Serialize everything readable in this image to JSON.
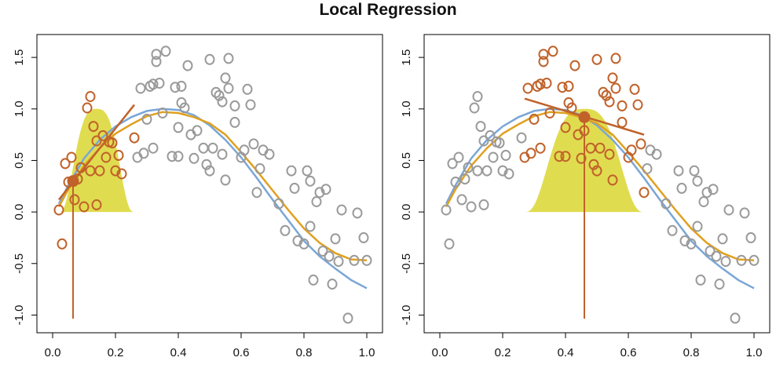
{
  "title": "Local Regression",
  "colors": {
    "outside": "#9a9a9a",
    "inside": "#c0622a",
    "true_curve": "#7aa6d6",
    "fit_curve": "#e0a020",
    "kernel": "#e0dc50",
    "local_line": "#c0622a",
    "target_point": "#c0622a"
  },
  "chart_data": [
    {
      "type": "scatter",
      "xlim": [
        0,
        1
      ],
      "ylim": [
        -1.05,
        1.6
      ],
      "xticks": [
        "0.0",
        "0.2",
        "0.4",
        "0.6",
        "0.8",
        "1.0"
      ],
      "yticks": [
        "-1.0",
        "-0.5",
        "0.0",
        "0.5",
        "1.0",
        "1.5"
      ],
      "grid": false,
      "legend": "none",
      "target": {
        "x": 0.065,
        "y": 0.3
      },
      "window": [
        0.02,
        0.26
      ],
      "kernel_peak": 1.0,
      "local_line": {
        "x": [
          0.02,
          0.26
        ],
        "y": [
          0.12,
          1.04
        ]
      },
      "true_curve": {
        "x": [
          0.02,
          0.05,
          0.1,
          0.15,
          0.2,
          0.25,
          0.3,
          0.35,
          0.4,
          0.45,
          0.5,
          0.55,
          0.6,
          0.65,
          0.7,
          0.75,
          0.8,
          0.85,
          0.9,
          0.95,
          1.0
        ],
        "y": [
          0.08,
          0.26,
          0.52,
          0.7,
          0.83,
          0.92,
          0.98,
          1.0,
          0.99,
          0.94,
          0.84,
          0.7,
          0.53,
          0.33,
          0.12,
          -0.08,
          -0.28,
          -0.43,
          -0.55,
          -0.66,
          -0.74
        ]
      },
      "fit_curve": {
        "x": [
          0.02,
          0.05,
          0.1,
          0.15,
          0.2,
          0.25,
          0.3,
          0.35,
          0.4,
          0.45,
          0.5,
          0.55,
          0.6,
          0.65,
          0.7,
          0.75,
          0.8,
          0.85,
          0.9,
          0.95,
          1.0
        ],
        "y": [
          0.05,
          0.22,
          0.45,
          0.62,
          0.76,
          0.85,
          0.93,
          0.97,
          0.96,
          0.92,
          0.86,
          0.75,
          0.58,
          0.4,
          0.21,
          0.02,
          -0.16,
          -0.3,
          -0.4,
          -0.46,
          -0.47
        ]
      },
      "points_inside": [
        [
          0.02,
          0.02
        ],
        [
          0.03,
          -0.31
        ],
        [
          0.04,
          0.47
        ],
        [
          0.05,
          0.29
        ],
        [
          0.06,
          0.53
        ],
        [
          0.07,
          0.12
        ],
        [
          0.08,
          0.32
        ],
        [
          0.09,
          0.43
        ],
        [
          0.1,
          0.05
        ],
        [
          0.11,
          1.01
        ],
        [
          0.12,
          1.12
        ],
        [
          0.12,
          0.4
        ],
        [
          0.13,
          0.83
        ],
        [
          0.14,
          0.07
        ],
        [
          0.14,
          0.69
        ],
        [
          0.15,
          0.4
        ],
        [
          0.16,
          0.74
        ],
        [
          0.17,
          0.53
        ],
        [
          0.18,
          0.68
        ],
        [
          0.19,
          0.67
        ],
        [
          0.2,
          0.4
        ],
        [
          0.21,
          0.55
        ],
        [
          0.22,
          0.37
        ],
        [
          0.26,
          0.72
        ]
      ],
      "points_outside": [
        [
          0.27,
          0.53
        ],
        [
          0.28,
          1.2
        ],
        [
          0.29,
          0.57
        ],
        [
          0.3,
          0.9
        ],
        [
          0.31,
          1.22
        ],
        [
          0.32,
          1.24
        ],
        [
          0.32,
          0.62
        ],
        [
          0.33,
          1.53
        ],
        [
          0.33,
          1.46
        ],
        [
          0.34,
          1.25
        ],
        [
          0.35,
          0.96
        ],
        [
          0.36,
          1.56
        ],
        [
          0.38,
          0.54
        ],
        [
          0.39,
          1.21
        ],
        [
          0.4,
          0.54
        ],
        [
          0.4,
          0.82
        ],
        [
          0.41,
          1.22
        ],
        [
          0.41,
          1.06
        ],
        [
          0.42,
          1.01
        ],
        [
          0.43,
          1.42
        ],
        [
          0.44,
          0.75
        ],
        [
          0.45,
          0.52
        ],
        [
          0.46,
          0.79
        ],
        [
          0.48,
          0.62
        ],
        [
          0.49,
          0.46
        ],
        [
          0.5,
          1.48
        ],
        [
          0.5,
          0.4
        ],
        [
          0.51,
          0.62
        ],
        [
          0.52,
          1.16
        ],
        [
          0.53,
          1.13
        ],
        [
          0.54,
          0.56
        ],
        [
          0.54,
          1.07
        ],
        [
          0.55,
          0.31
        ],
        [
          0.55,
          1.3
        ],
        [
          0.56,
          1.49
        ],
        [
          0.56,
          1.2
        ],
        [
          0.58,
          0.87
        ],
        [
          0.58,
          1.03
        ],
        [
          0.6,
          0.53
        ],
        [
          0.61,
          0.6
        ],
        [
          0.62,
          1.19
        ],
        [
          0.63,
          1.04
        ],
        [
          0.64,
          0.66
        ],
        [
          0.65,
          0.19
        ],
        [
          0.66,
          0.42
        ],
        [
          0.67,
          0.6
        ],
        [
          0.69,
          0.56
        ],
        [
          0.72,
          0.08
        ],
        [
          0.74,
          -0.18
        ],
        [
          0.76,
          0.4
        ],
        [
          0.77,
          0.23
        ],
        [
          0.78,
          -0.28
        ],
        [
          0.8,
          -0.31
        ],
        [
          0.81,
          0.4
        ],
        [
          0.82,
          -0.14
        ],
        [
          0.82,
          0.3
        ],
        [
          0.83,
          -0.66
        ],
        [
          0.84,
          0.1
        ],
        [
          0.85,
          0.19
        ],
        [
          0.86,
          -0.38
        ],
        [
          0.87,
          0.22
        ],
        [
          0.88,
          -0.43
        ],
        [
          0.89,
          -0.7
        ],
        [
          0.9,
          -0.26
        ],
        [
          0.91,
          -0.48
        ],
        [
          0.92,
          0.02
        ],
        [
          0.94,
          -1.03
        ],
        [
          0.96,
          -0.47
        ],
        [
          0.97,
          -0.01
        ],
        [
          0.99,
          -0.25
        ],
        [
          1.0,
          -0.47
        ]
      ]
    },
    {
      "type": "scatter",
      "xlim": [
        0,
        1
      ],
      "ylim": [
        -1.05,
        1.6
      ],
      "xticks": [
        "0.0",
        "0.2",
        "0.4",
        "0.6",
        "0.8",
        "1.0"
      ],
      "yticks": [
        "-1.0",
        "-0.5",
        "0.0",
        "0.5",
        "1.0",
        "1.5"
      ],
      "grid": false,
      "legend": "none",
      "target": {
        "x": 0.46,
        "y": 0.92
      },
      "window": [
        0.27,
        0.65
      ],
      "kernel_peak": 1.0,
      "local_line": {
        "x": [
          0.27,
          0.65
        ],
        "y": [
          1.1,
          0.75
        ]
      },
      "true_curve": {
        "x": [
          0.02,
          0.05,
          0.1,
          0.15,
          0.2,
          0.25,
          0.3,
          0.35,
          0.4,
          0.45,
          0.5,
          0.55,
          0.6,
          0.65,
          0.7,
          0.75,
          0.8,
          0.85,
          0.9,
          0.95,
          1.0
        ],
        "y": [
          0.08,
          0.26,
          0.52,
          0.7,
          0.83,
          0.92,
          0.98,
          1.0,
          0.99,
          0.94,
          0.84,
          0.7,
          0.53,
          0.33,
          0.12,
          -0.08,
          -0.28,
          -0.43,
          -0.55,
          -0.66,
          -0.74
        ]
      },
      "fit_curve": {
        "x": [
          0.02,
          0.05,
          0.1,
          0.15,
          0.2,
          0.25,
          0.3,
          0.35,
          0.4,
          0.45,
          0.5,
          0.55,
          0.6,
          0.65,
          0.7,
          0.75,
          0.8,
          0.85,
          0.9,
          0.95,
          1.0
        ],
        "y": [
          0.05,
          0.22,
          0.45,
          0.62,
          0.76,
          0.85,
          0.93,
          0.97,
          0.96,
          0.92,
          0.86,
          0.75,
          0.58,
          0.4,
          0.21,
          0.02,
          -0.16,
          -0.3,
          -0.4,
          -0.46,
          -0.47
        ]
      },
      "points_inside": [
        [
          0.27,
          0.53
        ],
        [
          0.28,
          1.2
        ],
        [
          0.29,
          0.57
        ],
        [
          0.3,
          0.9
        ],
        [
          0.31,
          1.22
        ],
        [
          0.32,
          1.24
        ],
        [
          0.32,
          0.62
        ],
        [
          0.33,
          1.53
        ],
        [
          0.33,
          1.46
        ],
        [
          0.34,
          1.25
        ],
        [
          0.35,
          0.96
        ],
        [
          0.36,
          1.56
        ],
        [
          0.38,
          0.54
        ],
        [
          0.39,
          1.21
        ],
        [
          0.4,
          0.54
        ],
        [
          0.4,
          0.82
        ],
        [
          0.41,
          1.22
        ],
        [
          0.41,
          1.06
        ],
        [
          0.42,
          1.01
        ],
        [
          0.43,
          1.42
        ],
        [
          0.44,
          0.75
        ],
        [
          0.45,
          0.52
        ],
        [
          0.46,
          0.79
        ],
        [
          0.48,
          0.62
        ],
        [
          0.49,
          0.46
        ],
        [
          0.5,
          1.48
        ],
        [
          0.5,
          0.4
        ],
        [
          0.51,
          0.62
        ],
        [
          0.52,
          1.16
        ],
        [
          0.53,
          1.13
        ],
        [
          0.54,
          0.56
        ],
        [
          0.54,
          1.07
        ],
        [
          0.55,
          0.31
        ],
        [
          0.55,
          1.3
        ],
        [
          0.56,
          1.49
        ],
        [
          0.56,
          1.2
        ],
        [
          0.58,
          0.87
        ],
        [
          0.58,
          1.03
        ],
        [
          0.6,
          0.53
        ],
        [
          0.61,
          0.6
        ],
        [
          0.62,
          1.19
        ],
        [
          0.63,
          1.04
        ],
        [
          0.64,
          0.66
        ],
        [
          0.65,
          0.19
        ]
      ],
      "points_outside": [
        [
          0.02,
          0.02
        ],
        [
          0.03,
          -0.31
        ],
        [
          0.04,
          0.47
        ],
        [
          0.05,
          0.29
        ],
        [
          0.06,
          0.53
        ],
        [
          0.07,
          0.12
        ],
        [
          0.08,
          0.32
        ],
        [
          0.09,
          0.43
        ],
        [
          0.1,
          0.05
        ],
        [
          0.11,
          1.01
        ],
        [
          0.12,
          1.12
        ],
        [
          0.12,
          0.4
        ],
        [
          0.13,
          0.83
        ],
        [
          0.14,
          0.07
        ],
        [
          0.14,
          0.69
        ],
        [
          0.15,
          0.4
        ],
        [
          0.16,
          0.74
        ],
        [
          0.17,
          0.53
        ],
        [
          0.18,
          0.68
        ],
        [
          0.19,
          0.67
        ],
        [
          0.2,
          0.4
        ],
        [
          0.21,
          0.55
        ],
        [
          0.22,
          0.37
        ],
        [
          0.26,
          0.72
        ],
        [
          0.66,
          0.42
        ],
        [
          0.67,
          0.6
        ],
        [
          0.69,
          0.56
        ],
        [
          0.72,
          0.08
        ],
        [
          0.74,
          -0.18
        ],
        [
          0.76,
          0.4
        ],
        [
          0.77,
          0.23
        ],
        [
          0.78,
          -0.28
        ],
        [
          0.8,
          -0.31
        ],
        [
          0.81,
          0.4
        ],
        [
          0.82,
          -0.14
        ],
        [
          0.82,
          0.3
        ],
        [
          0.83,
          -0.66
        ],
        [
          0.84,
          0.1
        ],
        [
          0.85,
          0.19
        ],
        [
          0.86,
          -0.38
        ],
        [
          0.87,
          0.22
        ],
        [
          0.88,
          -0.43
        ],
        [
          0.89,
          -0.7
        ],
        [
          0.9,
          -0.26
        ],
        [
          0.91,
          -0.48
        ],
        [
          0.92,
          0.02
        ],
        [
          0.94,
          -1.03
        ],
        [
          0.96,
          -0.47
        ],
        [
          0.97,
          -0.01
        ],
        [
          0.99,
          -0.25
        ],
        [
          1.0,
          -0.47
        ]
      ]
    }
  ]
}
